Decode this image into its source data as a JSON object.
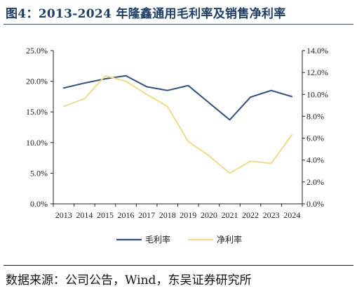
{
  "title": "图4：2013-2024 年隆鑫通用毛利率及销售净利率",
  "source": "数据来源：公司公告，Wind，东吴证券研究所",
  "chart_data": {
    "type": "line",
    "categories": [
      "2013",
      "2014",
      "2015",
      "2016",
      "2017",
      "2018",
      "2019",
      "2020",
      "2021",
      "2022",
      "2023",
      "2024"
    ],
    "series": [
      {
        "name": "毛利率",
        "axis": "left",
        "color": "#2e4f7c",
        "values": [
          18.9,
          19.7,
          20.4,
          20.9,
          19.1,
          18.5,
          19.3,
          16.5,
          13.7,
          17.4,
          18.5,
          17.5
        ]
      },
      {
        "name": "净利率",
        "axis": "right",
        "color": "#f0db8c",
        "values": [
          8.9,
          9.6,
          11.7,
          11.2,
          10.0,
          8.9,
          5.7,
          4.4,
          2.8,
          3.9,
          3.7,
          6.3
        ]
      }
    ],
    "y_left": {
      "min": 0,
      "max": 25,
      "ticks": [
        "0.0%",
        "5.0%",
        "10.0%",
        "15.0%",
        "20.0%",
        "25.0%"
      ]
    },
    "y_right": {
      "min": 0,
      "max": 14,
      "ticks": [
        "0.0%",
        "2.0%",
        "4.0%",
        "6.0%",
        "8.0%",
        "10.0%",
        "12.0%",
        "14.0%"
      ]
    },
    "grid": false,
    "legend_position": "bottom"
  }
}
